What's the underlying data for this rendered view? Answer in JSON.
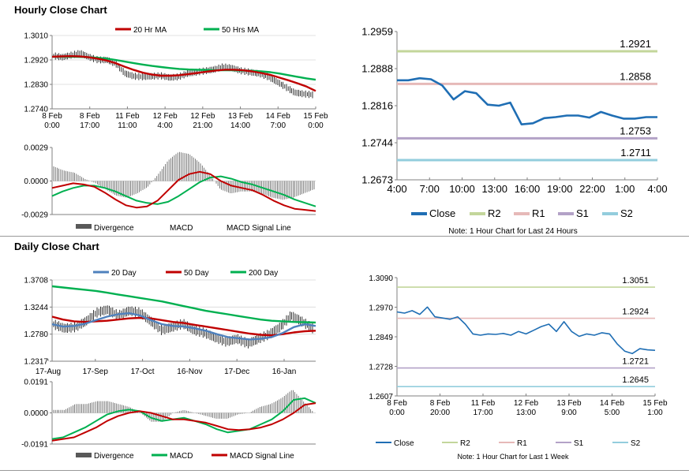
{
  "sections": {
    "hourly_title": "Hourly Close Chart",
    "daily_title": "Daily Close Chart"
  },
  "colors": {
    "close": "#1f6eb4",
    "r2": "#c3d69b",
    "r1": "#e6b9b8",
    "s1": "#b3a2c7",
    "s2": "#93cddd",
    "ma_red": "#c00000",
    "ma_green": "#00b050",
    "ma_blue": "#4f81bd",
    "divergence": "#595959",
    "candle": "#000000",
    "axis": "#808080"
  },
  "chart_data": [
    {
      "id": "hourly_price",
      "type": "line",
      "title": "",
      "legend": [
        "20 Hr MA",
        "50 Hrs MA"
      ],
      "legend_position": "top",
      "ylim": [
        1.274,
        1.301
      ],
      "yticks": [
        "1.3010",
        "1.2920",
        "1.2830",
        "1.2740"
      ],
      "xticks": [
        {
          "l1": "8 Feb",
          "l2": "0:00"
        },
        {
          "l1": "8 Feb",
          "l2": "17:00"
        },
        {
          "l1": "11 Feb",
          "l2": "11:00"
        },
        {
          "l1": "12 Feb",
          "l2": "4:00"
        },
        {
          "l1": "12 Feb",
          "l2": "21:00"
        },
        {
          "l1": "13 Feb",
          "l2": "14:00"
        },
        {
          "l1": "14 Feb",
          "l2": "7:00"
        },
        {
          "l1": "15 Feb",
          "l2": "0:00"
        }
      ],
      "grid": true,
      "series": [
        {
          "name": "Close",
          "values": [
            1.2935,
            1.293,
            1.2938,
            1.2945,
            1.293,
            1.292,
            1.292,
            1.2905,
            1.287,
            1.286,
            1.2858,
            1.286,
            1.2862,
            1.2855,
            1.2858,
            1.287,
            1.2875,
            1.288,
            1.2885,
            1.2895,
            1.289,
            1.288,
            1.2875,
            1.287,
            1.2858,
            1.284,
            1.282,
            1.28,
            1.2795,
            1.2792
          ]
        },
        {
          "name": "20 Hr MA",
          "values": [
            1.2932,
            1.2933,
            1.2934,
            1.2933,
            1.293,
            1.2925,
            1.2918,
            1.2908,
            1.2895,
            1.2883,
            1.2873,
            1.2866,
            1.2862,
            1.2862,
            1.2864,
            1.2868,
            1.2872,
            1.2877,
            1.2881,
            1.2884,
            1.2884,
            1.2882,
            1.2878,
            1.2872,
            1.2865,
            1.2855,
            1.2845,
            1.2834,
            1.2822,
            1.2806
          ]
        },
        {
          "name": "50 Hrs MA",
          "values": [
            1.2932,
            1.2932,
            1.2932,
            1.2931,
            1.293,
            1.2928,
            1.2925,
            1.292,
            1.2914,
            1.2908,
            1.2903,
            1.2898,
            1.2894,
            1.289,
            1.2887,
            1.2885,
            1.2884,
            1.2883,
            1.2882,
            1.2882,
            1.2882,
            1.2881,
            1.288,
            1.2878,
            1.2875,
            1.287,
            1.2864,
            1.2858,
            1.2852,
            1.2847
          ]
        }
      ]
    },
    {
      "id": "hourly_macd",
      "type": "line",
      "title": "",
      "legend": [
        "Divergence",
        "MACD",
        "MACD Signal Line"
      ],
      "legend_position": "bottom",
      "ylim": [
        -0.0029,
        0.0029
      ],
      "yticks": [
        "0.0029",
        "0.0000",
        "-0.0029"
      ],
      "grid": true,
      "series": [
        {
          "name": "MACD",
          "values": [
            -0.0006,
            -0.0004,
            -0.0002,
            -0.0003,
            -0.0005,
            -0.001,
            -0.0016,
            -0.0021,
            -0.0023,
            -0.0022,
            -0.0017,
            -0.0008,
            0.0001,
            0.0006,
            0.0008,
            0.0006,
            0.0,
            -0.0004,
            -0.0006,
            -0.0008,
            -0.0012,
            -0.0017,
            -0.0021,
            -0.0024,
            -0.0025,
            -0.0026
          ]
        },
        {
          "name": "MACD Signal Line",
          "values": [
            -0.0013,
            -0.0009,
            -0.0006,
            -0.0004,
            -0.0004,
            -0.0006,
            -0.0009,
            -0.0013,
            -0.0017,
            -0.0019,
            -0.002,
            -0.0018,
            -0.0013,
            -0.0007,
            -0.0001,
            0.0003,
            0.0004,
            0.0002,
            -0.0001,
            -0.0003,
            -0.0006,
            -0.0009,
            -0.0012,
            -0.0016,
            -0.0019,
            -0.0022
          ]
        }
      ]
    },
    {
      "id": "hourly_levels",
      "type": "line",
      "title": "",
      "note": "Note: 1 Hour Chart for Last 24 Hours",
      "legend": [
        "Close",
        "R2",
        "R1",
        "S1",
        "S2"
      ],
      "legend_position": "bottom",
      "ylim": [
        1.2673,
        1.2959
      ],
      "yticks": [
        "1.2959",
        "1.2888",
        "1.2816",
        "1.2744",
        "1.2673"
      ],
      "xticks": [
        "4:00",
        "7:00",
        "10:00",
        "13:00",
        "16:00",
        "19:00",
        "22:00",
        "1:00",
        "4:00"
      ],
      "levels": [
        {
          "name": "R2",
          "value": 1.2921,
          "label": "1.2921"
        },
        {
          "name": "R1",
          "value": 1.2858,
          "label": "1.2858"
        },
        {
          "name": "S1",
          "value": 1.2753,
          "label": "1.2753"
        },
        {
          "name": "S2",
          "value": 1.2711,
          "label": "1.2711"
        }
      ],
      "series": [
        {
          "name": "Close",
          "values": [
            1.2865,
            1.2865,
            1.2869,
            1.2867,
            1.2855,
            1.2828,
            1.2844,
            1.284,
            1.2818,
            1.2816,
            1.2822,
            1.278,
            1.2782,
            1.2792,
            1.2794,
            1.2797,
            1.2797,
            1.2793,
            1.2804,
            1.2797,
            1.2791,
            1.2791,
            1.2794,
            1.2794
          ]
        }
      ]
    },
    {
      "id": "daily_price",
      "type": "line",
      "title": "",
      "legend": [
        "20 Day",
        "50 Day",
        "200 Day"
      ],
      "legend_position": "top",
      "ylim": [
        1.2317,
        1.3708
      ],
      "yticks": [
        "1.3708",
        "1.3244",
        "1.2780",
        "1.2317"
      ],
      "xticks": [
        "17-Aug",
        "17-Sep",
        "17-Oct",
        "16-Nov",
        "17-Dec",
        "16-Jan"
      ],
      "grid": true,
      "series": [
        {
          "name": "Close",
          "values": [
            1.295,
            1.288,
            1.29,
            1.3,
            1.315,
            1.32,
            1.31,
            1.318,
            1.315,
            1.3,
            1.285,
            1.29,
            1.296,
            1.285,
            1.28,
            1.272,
            1.265,
            1.27,
            1.262,
            1.27,
            1.278,
            1.29,
            1.31,
            1.3,
            1.288
          ]
        },
        {
          "name": "20 Day",
          "values": [
            1.295,
            1.291,
            1.292,
            1.296,
            1.302,
            1.308,
            1.312,
            1.314,
            1.31,
            1.302,
            1.295,
            1.292,
            1.291,
            1.288,
            1.284,
            1.278,
            1.273,
            1.271,
            1.269,
            1.27,
            1.273,
            1.28,
            1.29,
            1.295,
            1.292
          ]
        },
        {
          "name": "50 Day",
          "values": [
            1.308,
            1.303,
            1.3,
            1.299,
            1.3,
            1.301,
            1.303,
            1.305,
            1.306,
            1.305,
            1.302,
            1.299,
            1.297,
            1.294,
            1.291,
            1.288,
            1.285,
            1.282,
            1.279,
            1.277,
            1.276,
            1.278,
            1.281,
            1.283,
            1.284
          ]
        },
        {
          "name": "200 Day",
          "values": [
            1.36,
            1.358,
            1.356,
            1.354,
            1.352,
            1.349,
            1.346,
            1.343,
            1.34,
            1.337,
            1.334,
            1.33,
            1.326,
            1.322,
            1.318,
            1.315,
            1.312,
            1.309,
            1.306,
            1.303,
            1.301,
            1.3,
            1.299,
            1.2985,
            1.298
          ]
        }
      ]
    },
    {
      "id": "daily_macd",
      "type": "line",
      "title": "",
      "legend": [
        "Divergence",
        "MACD",
        "MACD Signal Line"
      ],
      "legend_position": "bottom",
      "ylim": [
        -0.0191,
        0.0191
      ],
      "yticks": [
        "0.0191",
        "0.0000",
        "-0.0191"
      ],
      "grid": true,
      "series": [
        {
          "name": "MACD",
          "values": [
            -0.016,
            -0.015,
            -0.012,
            -0.009,
            -0.005,
            -0.001,
            0.001,
            0.002,
            0.001,
            -0.003,
            -0.005,
            -0.004,
            -0.003,
            -0.005,
            -0.007,
            -0.01,
            -0.012,
            -0.011,
            -0.01,
            -0.007,
            -0.004,
            0.001,
            0.008,
            0.009,
            0.006
          ]
        },
        {
          "name": "MACD Signal Line",
          "values": [
            -0.017,
            -0.016,
            -0.015,
            -0.012,
            -0.009,
            -0.005,
            -0.002,
            0.0,
            0.001,
            0.0,
            -0.002,
            -0.004,
            -0.004,
            -0.005,
            -0.006,
            -0.008,
            -0.01,
            -0.0105,
            -0.01,
            -0.009,
            -0.007,
            -0.004,
            0.0,
            0.005,
            0.006
          ]
        }
      ]
    },
    {
      "id": "daily_levels",
      "type": "line",
      "title": "",
      "note": "Note: 1 Hour Chart for Last 1 Week",
      "legend": [
        "Close",
        "R2",
        "R1",
        "S1",
        "S2"
      ],
      "legend_position": "bottom",
      "ylim": [
        1.2607,
        1.309
      ],
      "yticks": [
        "1.3090",
        "1.2970",
        "1.2849",
        "1.2728",
        "1.2607"
      ],
      "xticks": [
        {
          "l1": "8 Feb",
          "l2": "0:00"
        },
        {
          "l1": "8 Feb",
          "l2": "20:00"
        },
        {
          "l1": "11 Feb",
          "l2": "17:00"
        },
        {
          "l1": "12 Feb",
          "l2": "13:00"
        },
        {
          "l1": "13 Feb",
          "l2": "9:00"
        },
        {
          "l1": "14 Feb",
          "l2": "5:00"
        },
        {
          "l1": "15 Feb",
          "l2": "1:00"
        }
      ],
      "levels": [
        {
          "name": "R2",
          "value": 1.3051,
          "label": "1.3051"
        },
        {
          "name": "R1",
          "value": 1.2924,
          "label": "1.2924"
        },
        {
          "name": "S1",
          "value": 1.2721,
          "label": "1.2721"
        },
        {
          "name": "S2",
          "value": 1.2645,
          "label": "1.2645"
        }
      ],
      "series": [
        {
          "name": "Close",
          "values": [
            1.295,
            1.2945,
            1.2955,
            1.294,
            1.297,
            1.293,
            1.2925,
            1.292,
            1.293,
            1.29,
            1.286,
            1.2855,
            1.286,
            1.2858,
            1.2862,
            1.2855,
            1.287,
            1.286,
            1.2875,
            1.289,
            1.29,
            1.287,
            1.291,
            1.287,
            1.285,
            1.286,
            1.2855,
            1.2865,
            1.286,
            1.282,
            1.279,
            1.278,
            1.28,
            1.2795,
            1.2793
          ]
        }
      ]
    }
  ]
}
